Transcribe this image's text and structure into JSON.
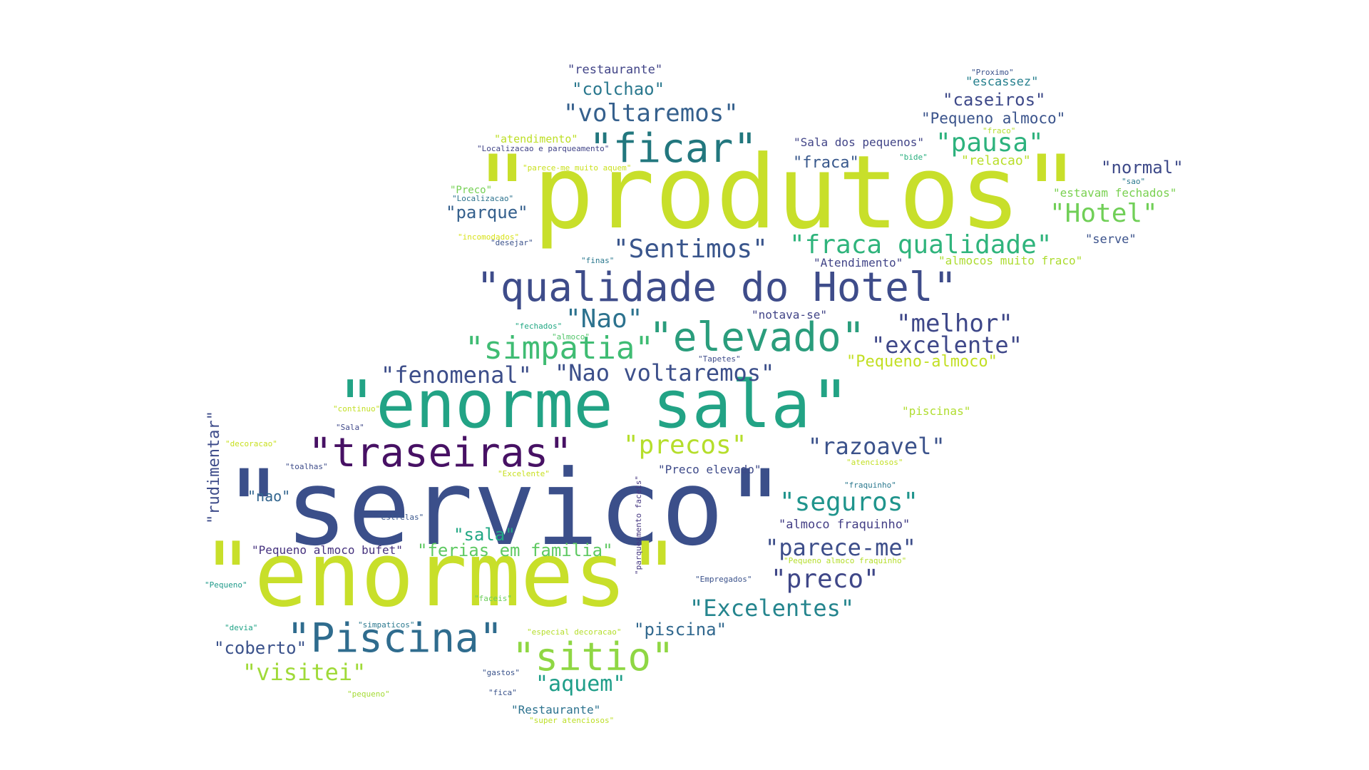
{
  "words": [
    {
      "text": "\"servico\"",
      "color": "#3b4f8a"
    },
    {
      "text": "\"produtos\"",
      "color": "#c8df2a"
    },
    {
      "text": "\"enormes\"",
      "color": "#c8df2a"
    },
    {
      "text": "\"enorme sala\"",
      "color": "#22a385"
    },
    {
      "text": "\"qualidade do Hotel\"",
      "color": "#3e4c8a"
    },
    {
      "text": "\"ficar\"",
      "color": "#22777e"
    },
    {
      "text": "\"elevado\"",
      "color": "#2a9d7c"
    },
    {
      "text": "\"traseiras\"",
      "color": "#471164"
    },
    {
      "text": "\"Piscina\"",
      "color": "#2f6c8e"
    },
    {
      "text": "\"sitio\"",
      "color": "#8fd744"
    },
    {
      "text": "\"simpatia\"",
      "color": "#3fbc73"
    },
    {
      "text": "\"voltaremos\"",
      "color": "#35608d"
    },
    {
      "text": "\"fraca qualidade\"",
      "color": "#2fb47c"
    },
    {
      "text": "\"Sentimos\"",
      "color": "#39558c"
    },
    {
      "text": "\"Nao voltaremos\"",
      "color": "#3c4f8a"
    },
    {
      "text": "\"fenomenal\"",
      "color": "#3d4e8a"
    },
    {
      "text": "\"Hotel\"",
      "color": "#70cf57"
    },
    {
      "text": "\"pausa\"",
      "color": "#2db27d"
    },
    {
      "text": "\"melhor\"",
      "color": "#3f4889"
    },
    {
      "text": "\"excelente\"",
      "color": "#3f4889"
    },
    {
      "text": "\"Nao\"",
      "color": "#2c728e"
    },
    {
      "text": "\"precos\"",
      "color": "#b5de2b"
    },
    {
      "text": "\"razoavel\"",
      "color": "#3b528b"
    },
    {
      "text": "\"seguros\"",
      "color": "#1f948c"
    },
    {
      "text": "\"parece-me\"",
      "color": "#3d4e8a"
    },
    {
      "text": "\"preco\"",
      "color": "#3f4788"
    },
    {
      "text": "\"Excelentes\"",
      "color": "#25858e"
    },
    {
      "text": "\"visitei\"",
      "color": "#a0da39"
    },
    {
      "text": "\"aquem\"",
      "color": "#1f9e89"
    },
    {
      "text": "\"colchao\"",
      "color": "#2a788e"
    },
    {
      "text": "\"caseiros\"",
      "color": "#3e4989"
    },
    {
      "text": "\"normal\"",
      "color": "#3e4a89"
    },
    {
      "text": "\"parque\"",
      "color": "#35608d"
    },
    {
      "text": "\"fraca\"",
      "color": "#38588c"
    },
    {
      "text": "\"Pequeno almoco\"",
      "color": "#3a538b"
    },
    {
      "text": "\"ferias em familia\"",
      "color": "#5ec962"
    },
    {
      "text": "\"coberto\"",
      "color": "#3b528b"
    },
    {
      "text": "\"piscina\"",
      "color": "#31688e"
    },
    {
      "text": "\"sala\"",
      "color": "#22a884"
    },
    {
      "text": "\"nao\"",
      "color": "#32658e"
    },
    {
      "text": "\"rudimentar\"",
      "color": "#3e4c8a"
    },
    {
      "text": "\"Pequeno-almoco\"",
      "color": "#c2df23"
    },
    {
      "text": "\"relacao\"",
      "color": "#b8de29"
    },
    {
      "text": "\"escassez\"",
      "color": "#27808e"
    },
    {
      "text": "\"restaurante\"",
      "color": "#414487"
    },
    {
      "text": "\"Sala dos pequenos\"",
      "color": "#414487"
    },
    {
      "text": "\"notava-se\"",
      "color": "#414487"
    },
    {
      "text": "\"Atendimento\"",
      "color": "#414487"
    },
    {
      "text": "\"serve\"",
      "color": "#3b528b"
    },
    {
      "text": "\"estavam fechados\"",
      "color": "#7ad151"
    },
    {
      "text": "\"almocos muito fraco\"",
      "color": "#addc30"
    },
    {
      "text": "\"piscinas\"",
      "color": "#b0dd2f"
    },
    {
      "text": "\"Preco elevado\"",
      "color": "#3e4a89"
    },
    {
      "text": "\"almoco fraquinho\"",
      "color": "#433e85"
    },
    {
      "text": "\"Pequeno almoco bufet\"",
      "color": "#46327e"
    },
    {
      "text": "\"Restaurante\"",
      "color": "#2c728e"
    },
    {
      "text": "\"atendimento\"",
      "color": "#bddf26"
    },
    {
      "text": "\"Localizacao e parqueamento\"",
      "color": "#414487"
    },
    {
      "text": "\"parece-me muito aquem\"",
      "color": "#cae11f"
    },
    {
      "text": "\"Preco\"",
      "color": "#75d054"
    },
    {
      "text": "\"Localizacao\"",
      "color": "#2c728e"
    },
    {
      "text": "\"incomodados\"",
      "color": "#d8e219"
    },
    {
      "text": "\"desejar\"",
      "color": "#3b528b"
    },
    {
      "text": "\"finas\"",
      "color": "#2a788e"
    },
    {
      "text": "\"fechados\"",
      "color": "#22a884"
    },
    {
      "text": "\"almoco\"",
      "color": "#52c569"
    },
    {
      "text": "\"Tapetes\"",
      "color": "#3e4c8a"
    },
    {
      "text": "\"continuo\"",
      "color": "#c2df23"
    },
    {
      "text": "\"Sala\"",
      "color": "#3f4889"
    },
    {
      "text": "\"decoracao\"",
      "color": "#c8e020"
    },
    {
      "text": "\"toalhas\"",
      "color": "#3e4c8a"
    },
    {
      "text": "\"Excelente\"",
      "color": "#c8e020"
    },
    {
      "text": "\"estrelas\"",
      "color": "#39568c"
    },
    {
      "text": "\"parqueamento faceis\"",
      "color": "#453781"
    },
    {
      "text": "\"Empregados\"",
      "color": "#3b528b"
    },
    {
      "text": "\"faceis\"",
      "color": "#6ccd5a"
    },
    {
      "text": "\"Pequeno\"",
      "color": "#1f9a8a"
    },
    {
      "text": "\"devia\"",
      "color": "#20a386"
    },
    {
      "text": "\"simpaticos\"",
      "color": "#2a788e"
    },
    {
      "text": "\"especial decoracao\"",
      "color": "#b5de2b"
    },
    {
      "text": "\"gastos\"",
      "color": "#3a538b"
    },
    {
      "text": "\"fica\"",
      "color": "#3a538b"
    },
    {
      "text": "\"pequeno\"",
      "color": "#a5db36"
    },
    {
      "text": "\"super atenciosos\"",
      "color": "#bddf26"
    },
    {
      "text": "\"atenciosos\"",
      "color": "#c2df23"
    },
    {
      "text": "\"fraquinho\"",
      "color": "#2a788e"
    },
    {
      "text": "\"Pequeno almoco fraquinho\"",
      "color": "#b5de2b"
    },
    {
      "text": "\"Proximo\"",
      "color": "#3b528b"
    },
    {
      "text": "\"fraco\"",
      "color": "#b5de2b"
    },
    {
      "text": "\"bide\"",
      "color": "#29af7f"
    },
    {
      "text": "\"sao\"",
      "color": "#2a788e"
    }
  ]
}
